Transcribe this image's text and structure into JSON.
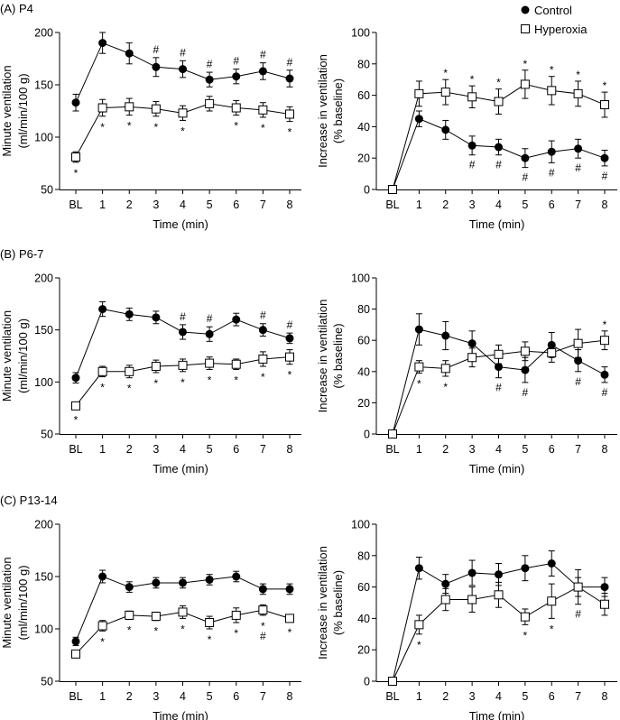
{
  "legend": {
    "control_label": "Control",
    "hyperoxia_label": "Hyperoxia"
  },
  "chart_data": [
    {
      "panel_label": "(A) P4",
      "type": "line",
      "measure": "minute",
      "categories": [
        "BL",
        "1",
        "2",
        "3",
        "4",
        "5",
        "6",
        "7",
        "8"
      ],
      "xlabel": "Time (min)",
      "ylabel": [
        "Minute ventilation",
        "(ml/min/100 g)"
      ],
      "ylim": [
        50,
        200
      ],
      "yticks": [
        50,
        100,
        150,
        200
      ],
      "series": [
        {
          "name": "Control",
          "marker": "filled-circle",
          "values": [
            133,
            190,
            180,
            167,
            165,
            155,
            158,
            163,
            156
          ],
          "errors": [
            8,
            10,
            10,
            9,
            8,
            7,
            7,
            8,
            8
          ]
        },
        {
          "name": "Hyperoxia",
          "marker": "open-square",
          "values": [
            81,
            128,
            129,
            127,
            123,
            132,
            128,
            126,
            122
          ],
          "errors": [
            5,
            8,
            8,
            7,
            7,
            7,
            7,
            7,
            7
          ]
        }
      ],
      "annotations": [
        {
          "series": "Control",
          "index": 3,
          "text": "#",
          "pos": "above"
        },
        {
          "series": "Control",
          "index": 4,
          "text": "#",
          "pos": "above"
        },
        {
          "series": "Control",
          "index": 5,
          "text": "#",
          "pos": "above"
        },
        {
          "series": "Control",
          "index": 6,
          "text": "#",
          "pos": "above"
        },
        {
          "series": "Control",
          "index": 7,
          "text": "#",
          "pos": "above"
        },
        {
          "series": "Control",
          "index": 8,
          "text": "#",
          "pos": "above"
        },
        {
          "series": "Hyperoxia",
          "index": 0,
          "text": "*",
          "pos": "below"
        },
        {
          "series": "Hyperoxia",
          "index": 1,
          "text": "*",
          "pos": "below"
        },
        {
          "series": "Hyperoxia",
          "index": 2,
          "text": "*",
          "pos": "below"
        },
        {
          "series": "Hyperoxia",
          "index": 3,
          "text": "*",
          "pos": "below"
        },
        {
          "series": "Hyperoxia",
          "index": 4,
          "text": "*",
          "pos": "below"
        },
        {
          "series": "Hyperoxia",
          "index": 6,
          "text": "*",
          "pos": "below"
        },
        {
          "series": "Hyperoxia",
          "index": 7,
          "text": "*",
          "pos": "below"
        },
        {
          "series": "Hyperoxia",
          "index": 8,
          "text": "*",
          "pos": "below"
        }
      ]
    },
    {
      "type": "line",
      "measure": "increase",
      "categories": [
        "BL",
        "1",
        "2",
        "3",
        "4",
        "5",
        "6",
        "7",
        "8"
      ],
      "xlabel": "Time (min)",
      "ylabel": [
        "Increase in ventilation",
        "(% baseline)"
      ],
      "ylim": [
        0,
        100
      ],
      "yticks": [
        0,
        20,
        40,
        60,
        80,
        100
      ],
      "series": [
        {
          "name": "Control",
          "marker": "filled-circle",
          "values": [
            0,
            45,
            38,
            28,
            27,
            20,
            24,
            26,
            20
          ],
          "errors": [
            0,
            5,
            6,
            6,
            5,
            6,
            7,
            6,
            5
          ]
        },
        {
          "name": "Hyperoxia",
          "marker": "open-square",
          "values": [
            0,
            61,
            62,
            59,
            56,
            67,
            63,
            61,
            54
          ],
          "errors": [
            0,
            8,
            8,
            7,
            8,
            9,
            9,
            8,
            8
          ]
        }
      ],
      "annotations": [
        {
          "series": "Hyperoxia",
          "index": 2,
          "text": "*",
          "pos": "above"
        },
        {
          "series": "Hyperoxia",
          "index": 3,
          "text": "*",
          "pos": "above"
        },
        {
          "series": "Hyperoxia",
          "index": 4,
          "text": "*",
          "pos": "above"
        },
        {
          "series": "Hyperoxia",
          "index": 5,
          "text": "*",
          "pos": "above"
        },
        {
          "series": "Hyperoxia",
          "index": 6,
          "text": "*",
          "pos": "above"
        },
        {
          "series": "Hyperoxia",
          "index": 7,
          "text": "*",
          "pos": "above"
        },
        {
          "series": "Hyperoxia",
          "index": 8,
          "text": "*",
          "pos": "above"
        },
        {
          "series": "Control",
          "index": 3,
          "text": "#",
          "pos": "below"
        },
        {
          "series": "Control",
          "index": 4,
          "text": "#",
          "pos": "below"
        },
        {
          "series": "Control",
          "index": 5,
          "text": "#",
          "pos": "below"
        },
        {
          "series": "Control",
          "index": 6,
          "text": "#",
          "pos": "below"
        },
        {
          "series": "Control",
          "index": 7,
          "text": "#",
          "pos": "below"
        },
        {
          "series": "Control",
          "index": 8,
          "text": "#",
          "pos": "below"
        }
      ]
    },
    {
      "panel_label": "(B) P6-7",
      "type": "line",
      "measure": "minute",
      "categories": [
        "BL",
        "1",
        "2",
        "3",
        "4",
        "5",
        "6",
        "7",
        "8"
      ],
      "xlabel": "Time (min)",
      "ylabel": [
        "Minute ventilation",
        "(ml/min/100 g)"
      ],
      "ylim": [
        50,
        200
      ],
      "yticks": [
        50,
        100,
        150,
        200
      ],
      "series": [
        {
          "name": "Control",
          "marker": "filled-circle",
          "values": [
            104,
            170,
            165,
            162,
            148,
            146,
            160,
            150,
            142
          ],
          "errors": [
            5,
            7,
            6,
            6,
            7,
            7,
            6,
            6,
            5
          ]
        },
        {
          "name": "Hyperoxia",
          "marker": "open-square",
          "values": [
            77,
            110,
            110,
            115,
            116,
            118,
            117,
            122,
            124
          ],
          "errors": [
            3,
            5,
            6,
            6,
            6,
            6,
            5,
            7,
            7
          ]
        }
      ],
      "annotations": [
        {
          "series": "Control",
          "index": 4,
          "text": "#",
          "pos": "above"
        },
        {
          "series": "Control",
          "index": 5,
          "text": "#",
          "pos": "above"
        },
        {
          "series": "Control",
          "index": 7,
          "text": "#",
          "pos": "above"
        },
        {
          "series": "Control",
          "index": 8,
          "text": "#",
          "pos": "above"
        },
        {
          "series": "Hyperoxia",
          "index": 0,
          "text": "*",
          "pos": "below"
        },
        {
          "series": "Hyperoxia",
          "index": 1,
          "text": "*",
          "pos": "below"
        },
        {
          "series": "Hyperoxia",
          "index": 2,
          "text": "*",
          "pos": "below"
        },
        {
          "series": "Hyperoxia",
          "index": 3,
          "text": "*",
          "pos": "below"
        },
        {
          "series": "Hyperoxia",
          "index": 4,
          "text": "*",
          "pos": "below"
        },
        {
          "series": "Hyperoxia",
          "index": 5,
          "text": "*",
          "pos": "below"
        },
        {
          "series": "Hyperoxia",
          "index": 6,
          "text": "*",
          "pos": "below"
        },
        {
          "series": "Hyperoxia",
          "index": 7,
          "text": "*",
          "pos": "below"
        },
        {
          "series": "Hyperoxia",
          "index": 8,
          "text": "*",
          "pos": "below"
        }
      ]
    },
    {
      "type": "line",
      "measure": "increase",
      "categories": [
        "BL",
        "1",
        "2",
        "3",
        "4",
        "5",
        "6",
        "7",
        "8"
      ],
      "xlabel": "Time (min)",
      "ylabel": [
        "Increase in ventilation",
        "(% baseline)"
      ],
      "ylim": [
        0,
        100
      ],
      "yticks": [
        0,
        20,
        40,
        60,
        80,
        100
      ],
      "series": [
        {
          "name": "Control",
          "marker": "filled-circle",
          "values": [
            0,
            67,
            63,
            58,
            43,
            41,
            57,
            47,
            38
          ],
          "errors": [
            0,
            10,
            9,
            8,
            7,
            8,
            8,
            7,
            5
          ]
        },
        {
          "name": "Hyperoxia",
          "marker": "open-square",
          "values": [
            0,
            43,
            42,
            49,
            51,
            53,
            52,
            58,
            60
          ],
          "errors": [
            0,
            4,
            5,
            6,
            6,
            6,
            6,
            9,
            6
          ]
        }
      ],
      "annotations": [
        {
          "series": "Hyperoxia",
          "index": 1,
          "text": "*",
          "pos": "below"
        },
        {
          "series": "Hyperoxia",
          "index": 2,
          "text": "*",
          "pos": "below"
        },
        {
          "series": "Hyperoxia",
          "index": 8,
          "text": "*",
          "pos": "above"
        },
        {
          "series": "Control",
          "index": 4,
          "text": "#",
          "pos": "below"
        },
        {
          "series": "Control",
          "index": 5,
          "text": "#",
          "pos": "below"
        },
        {
          "series": "Control",
          "index": 7,
          "text": "#",
          "pos": "below"
        },
        {
          "series": "Control",
          "index": 8,
          "text": "#",
          "pos": "below"
        }
      ]
    },
    {
      "panel_label": "(C) P13-14",
      "type": "line",
      "measure": "minute",
      "categories": [
        "BL",
        "1",
        "2",
        "3",
        "4",
        "5",
        "6",
        "7",
        "8"
      ],
      "xlabel": "Time (min)",
      "ylabel": [
        "Minute ventilation",
        "(ml/min/100 g)"
      ],
      "ylim": [
        50,
        200
      ],
      "yticks": [
        50,
        100,
        150,
        200
      ],
      "series": [
        {
          "name": "Control",
          "marker": "filled-circle",
          "values": [
            88,
            150,
            140,
            144,
            144,
            147,
            150,
            138,
            138
          ],
          "errors": [
            4,
            6,
            5,
            5,
            5,
            5,
            5,
            5,
            5
          ]
        },
        {
          "name": "Hyperoxia",
          "marker": "open-square",
          "values": [
            76,
            103,
            113,
            112,
            116,
            106,
            113,
            118,
            110
          ],
          "errors": [
            3,
            5,
            4,
            4,
            6,
            6,
            7,
            5,
            3
          ]
        }
      ],
      "annotations": [
        {
          "series": "Hyperoxia",
          "index": 1,
          "text": "*",
          "pos": "below"
        },
        {
          "series": "Hyperoxia",
          "index": 2,
          "text": "*",
          "pos": "below"
        },
        {
          "series": "Hyperoxia",
          "index": 3,
          "text": "*",
          "pos": "below"
        },
        {
          "series": "Hyperoxia",
          "index": 4,
          "text": "*",
          "pos": "below"
        },
        {
          "series": "Hyperoxia",
          "index": 5,
          "text": "*",
          "pos": "below"
        },
        {
          "series": "Hyperoxia",
          "index": 6,
          "text": "*",
          "pos": "below"
        },
        {
          "series": "Hyperoxia",
          "index": 7,
          "text": "*",
          "pos": "below"
        },
        {
          "series": "Hyperoxia",
          "index": 7,
          "text": "#",
          "pos": "below2"
        },
        {
          "series": "Hyperoxia",
          "index": 8,
          "text": "*",
          "pos": "below"
        }
      ]
    },
    {
      "type": "line",
      "measure": "increase",
      "categories": [
        "BL",
        "1",
        "2",
        "3",
        "4",
        "5",
        "6",
        "7",
        "8"
      ],
      "xlabel": "Time (min)",
      "ylabel": [
        "Increase in ventilation",
        "(% baseline)"
      ],
      "ylim": [
        0,
        100
      ],
      "yticks": [
        0,
        20,
        40,
        60,
        80,
        100
      ],
      "series": [
        {
          "name": "Control",
          "marker": "filled-circle",
          "values": [
            0,
            72,
            62,
            69,
            68,
            72,
            75,
            60,
            60
          ],
          "errors": [
            0,
            7,
            6,
            8,
            7,
            8,
            8,
            6,
            6
          ]
        },
        {
          "name": "Hyperoxia",
          "marker": "open-square",
          "values": [
            0,
            36,
            52,
            52,
            55,
            41,
            51,
            60,
            49
          ],
          "errors": [
            0,
            6,
            7,
            8,
            8,
            5,
            11,
            11,
            7
          ]
        }
      ],
      "annotations": [
        {
          "series": "Hyperoxia",
          "index": 1,
          "text": "*",
          "pos": "below"
        },
        {
          "series": "Hyperoxia",
          "index": 5,
          "text": "*",
          "pos": "below"
        },
        {
          "series": "Hyperoxia",
          "index": 6,
          "text": "*",
          "pos": "below"
        },
        {
          "series": "Hyperoxia",
          "index": 7,
          "text": "#",
          "pos": "below"
        }
      ]
    }
  ]
}
